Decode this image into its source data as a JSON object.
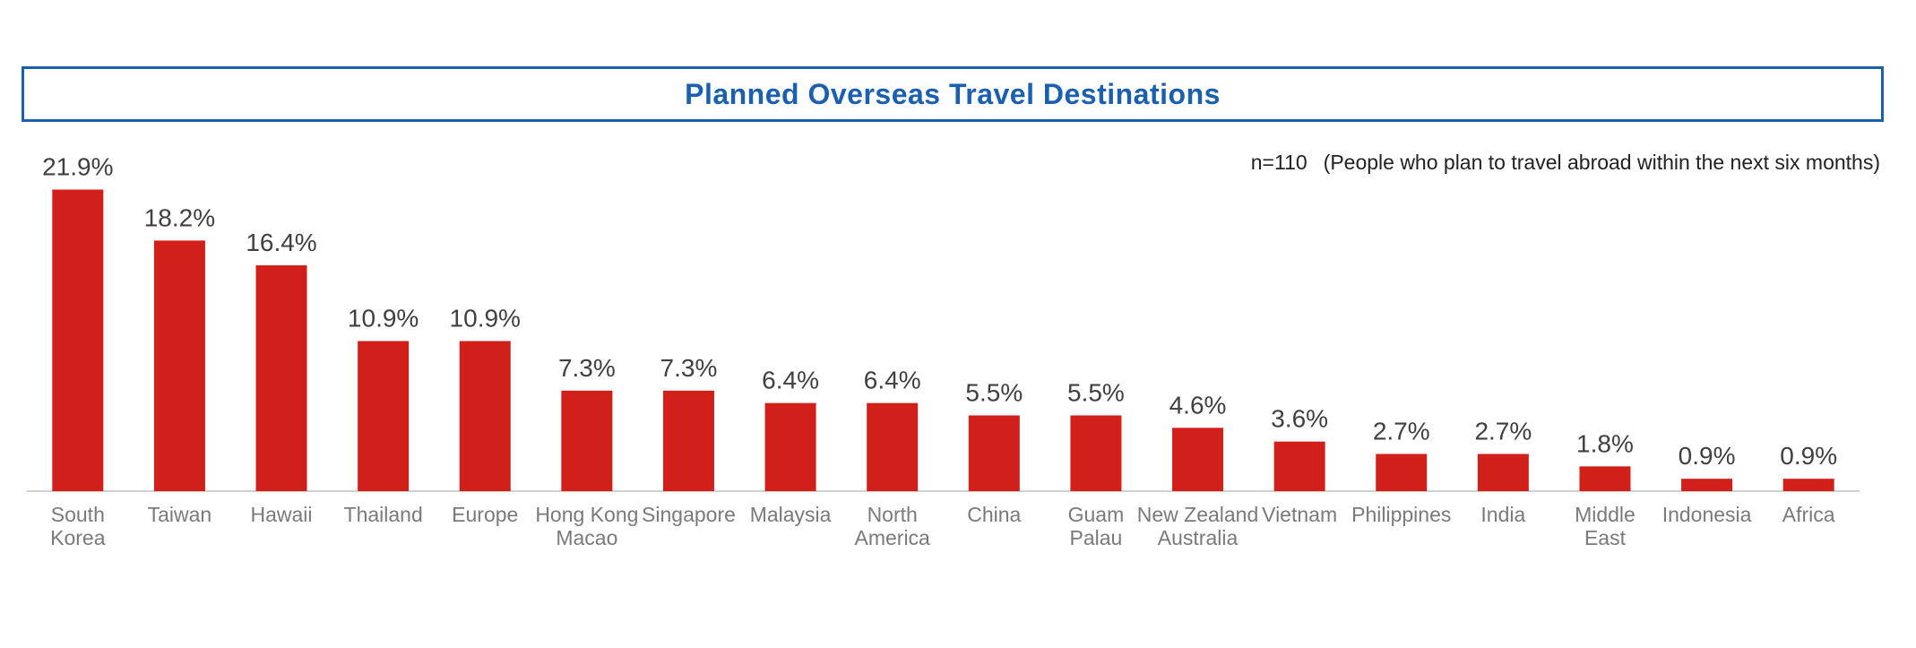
{
  "chart_data": {
    "type": "bar",
    "title": "Planned Overseas Travel Destinations",
    "note_n": "n=110",
    "note_desc": "(People who plan to travel abroad within the next six months)",
    "categories": [
      [
        "South",
        "Korea"
      ],
      [
        "Taiwan"
      ],
      [
        "Hawaii"
      ],
      [
        "Thailand"
      ],
      [
        "Europe"
      ],
      [
        "Hong Kong",
        "Macao"
      ],
      [
        "Singapore"
      ],
      [
        "Malaysia"
      ],
      [
        "North",
        "America"
      ],
      [
        "China"
      ],
      [
        "Guam",
        "Palau"
      ],
      [
        "New Zealand",
        "Australia"
      ],
      [
        "Vietnam"
      ],
      [
        "Philippines"
      ],
      [
        "India"
      ],
      [
        "Middle",
        "East"
      ],
      [
        "Indonesia"
      ],
      [
        "Africa"
      ]
    ],
    "values": [
      21.9,
      18.2,
      16.4,
      10.9,
      10.9,
      7.3,
      7.3,
      6.4,
      6.4,
      5.5,
      5.5,
      4.6,
      3.6,
      2.7,
      2.7,
      1.8,
      0.9,
      0.9
    ],
    "value_labels": [
      "21.9%",
      "18.2%",
      "16.4%",
      "10.9%",
      "10.9%",
      "7.3%",
      "7.3%",
      "6.4%",
      "6.4%",
      "5.5%",
      "5.5%",
      "4.6%",
      "3.6%",
      "2.7%",
      "2.7%",
      "1.8%",
      "0.9%",
      "0.9%"
    ],
    "ylim": [
      0,
      22
    ],
    "grid": false,
    "bar_color": "#d11f1a",
    "title_color": "#1a5fb0"
  }
}
